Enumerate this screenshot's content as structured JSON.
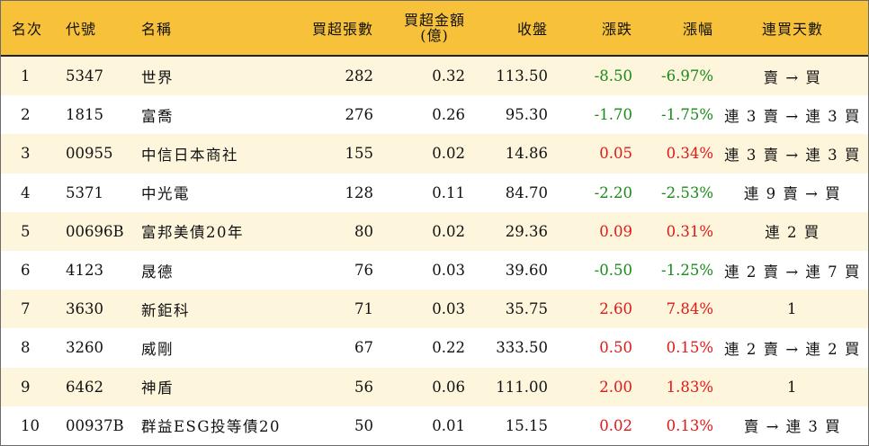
{
  "headers": {
    "rank": "名次",
    "code": "代號",
    "name": "名稱",
    "volume": "買超張數",
    "amount_line1": "買超金額",
    "amount_line2": "(億)",
    "close": "收盤",
    "change": "漲跌",
    "pct": "漲幅",
    "days": "連買天數"
  },
  "colors": {
    "header_bg": "#f7c23a",
    "stripe_bg": "#fdf5dc",
    "up": "#e01818",
    "down": "#1a8a1a"
  },
  "rows": [
    {
      "rank": "1",
      "code": "5347",
      "name": "世界",
      "volume": "282",
      "amount": "0.32",
      "close": "113.50",
      "change": "-8.50",
      "pct": "-6.97%",
      "days": "賣 → 買",
      "dir": "down"
    },
    {
      "rank": "2",
      "code": "1815",
      "name": "富喬",
      "volume": "276",
      "amount": "0.26",
      "close": "95.30",
      "change": "-1.70",
      "pct": "-1.75%",
      "days": "連 3 賣 → 連 3 買",
      "dir": "down"
    },
    {
      "rank": "3",
      "code": "00955",
      "name": "中信日本商社",
      "volume": "155",
      "amount": "0.02",
      "close": "14.86",
      "change": "0.05",
      "pct": "0.34%",
      "days": "連 3 賣 → 連 3 買",
      "dir": "up"
    },
    {
      "rank": "4",
      "code": "5371",
      "name": "中光電",
      "volume": "128",
      "amount": "0.11",
      "close": "84.70",
      "change": "-2.20",
      "pct": "-2.53%",
      "days": "連 9 賣 → 買",
      "dir": "down"
    },
    {
      "rank": "5",
      "code": "00696B",
      "name": "富邦美債20年",
      "volume": "80",
      "amount": "0.02",
      "close": "29.36",
      "change": "0.09",
      "pct": "0.31%",
      "days": "連 2 買",
      "dir": "up"
    },
    {
      "rank": "6",
      "code": "4123",
      "name": "晟德",
      "volume": "76",
      "amount": "0.03",
      "close": "39.60",
      "change": "-0.50",
      "pct": "-1.25%",
      "days": "連 2 賣 → 連 7 買",
      "dir": "down"
    },
    {
      "rank": "7",
      "code": "3630",
      "name": "新鉅科",
      "volume": "71",
      "amount": "0.03",
      "close": "35.75",
      "change": "2.60",
      "pct": "7.84%",
      "days": "1",
      "dir": "up"
    },
    {
      "rank": "8",
      "code": "3260",
      "name": "威剛",
      "volume": "67",
      "amount": "0.22",
      "close": "333.50",
      "change": "0.50",
      "pct": "0.15%",
      "days": "連 2 賣 → 連 2 買",
      "dir": "up"
    },
    {
      "rank": "9",
      "code": "6462",
      "name": "神盾",
      "volume": "56",
      "amount": "0.06",
      "close": "111.00",
      "change": "2.00",
      "pct": "1.83%",
      "days": "1",
      "dir": "up"
    },
    {
      "rank": "10",
      "code": "00937B",
      "name": "群益ESG投等債20",
      "volume": "50",
      "amount": "0.01",
      "close": "15.15",
      "change": "0.02",
      "pct": "0.13%",
      "days": "賣 → 連 3 買",
      "dir": "up"
    }
  ]
}
